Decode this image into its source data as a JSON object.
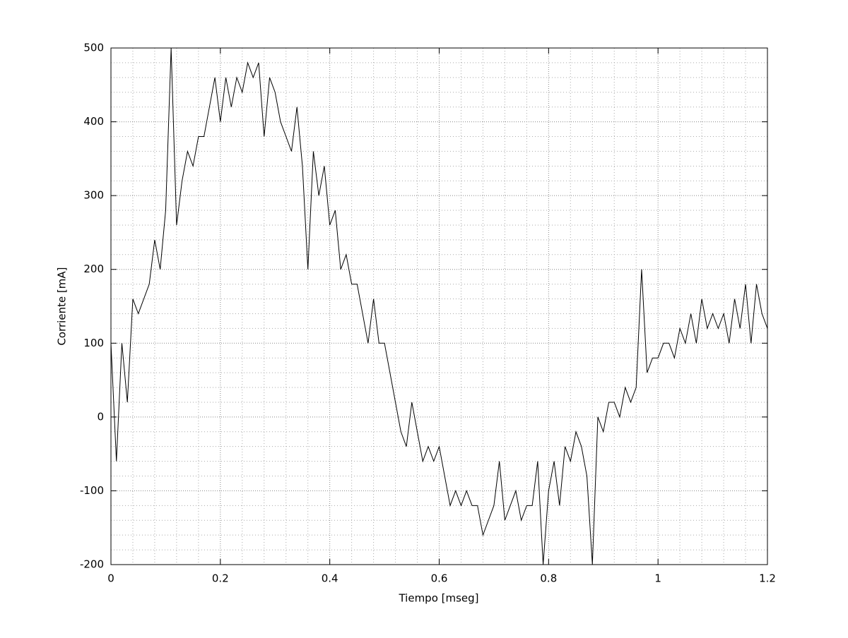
{
  "chart_data": {
    "type": "line",
    "xlabel": "Tiempo [mseg]",
    "ylabel": "Corriente [mA]",
    "x": [
      0,
      0.01,
      0.02,
      0.03,
      0.04,
      0.05,
      0.06,
      0.07,
      0.08,
      0.09,
      0.1,
      0.11,
      0.12,
      0.13,
      0.14,
      0.15,
      0.16,
      0.17,
      0.18,
      0.19,
      0.2,
      0.21,
      0.22,
      0.23,
      0.24,
      0.25,
      0.26,
      0.27,
      0.28,
      0.29,
      0.3,
      0.31,
      0.32,
      0.33,
      0.34,
      0.35,
      0.36,
      0.37,
      0.38,
      0.39,
      0.4,
      0.41,
      0.42,
      0.43,
      0.44,
      0.45,
      0.46,
      0.47,
      0.48,
      0.49,
      0.5,
      0.51,
      0.52,
      0.53,
      0.54,
      0.55,
      0.56,
      0.57,
      0.58,
      0.59,
      0.6,
      0.61,
      0.62,
      0.63,
      0.64,
      0.65,
      0.66,
      0.67,
      0.68,
      0.69,
      0.7,
      0.71,
      0.72,
      0.73,
      0.74,
      0.75,
      0.76,
      0.77,
      0.78,
      0.79,
      0.8,
      0.81,
      0.82,
      0.83,
      0.84,
      0.85,
      0.86,
      0.87,
      0.88,
      0.89,
      0.9,
      0.91,
      0.92,
      0.93,
      0.94,
      0.95,
      0.96,
      0.97,
      0.98,
      0.99,
      1,
      1.01,
      1.02,
      1.03,
      1.04,
      1.05,
      1.06,
      1.07,
      1.08,
      1.09,
      1.1,
      1.11,
      1.12,
      1.13,
      1.14,
      1.15,
      1.16,
      1.17,
      1.18,
      1.19,
      1.2
    ],
    "series": [
      {
        "color": "#000000",
        "values": [
          100,
          -60,
          100,
          20,
          160,
          140,
          160,
          180,
          240,
          200,
          280,
          500,
          260,
          320,
          360,
          340,
          380,
          380,
          420,
          460,
          400,
          460,
          420,
          460,
          440,
          480,
          460,
          480,
          380,
          460,
          440,
          400,
          380,
          360,
          420,
          340,
          200,
          360,
          300,
          340,
          260,
          280,
          200,
          220,
          180,
          180,
          140,
          100,
          160,
          100,
          100,
          60,
          20,
          -20,
          -40,
          20,
          -20,
          -60,
          -40,
          -60,
          -40,
          -80,
          -120,
          -100,
          -120,
          -100,
          -120,
          -120,
          -160,
          -140,
          -120,
          -60,
          -140,
          -120,
          -100,
          -140,
          -120,
          -120,
          -60,
          -200,
          -100,
          -60,
          -120,
          -40,
          -60,
          -20,
          -40,
          -80,
          -200,
          0,
          -20,
          20,
          20,
          0,
          40,
          20,
          40,
          200,
          60,
          80,
          80,
          100,
          100,
          80,
          120,
          100,
          140,
          100,
          160,
          120,
          140,
          120,
          140,
          100,
          160,
          120,
          180,
          100,
          180,
          140,
          120
        ]
      }
    ],
    "xlim": [
      0,
      1.2
    ],
    "ylim": [
      -200,
      500
    ],
    "xticks": [
      0,
      0.2,
      0.4,
      0.6,
      0.8,
      1,
      1.2
    ],
    "yticks": [
      -200,
      -100,
      0,
      100,
      200,
      300,
      400,
      500
    ],
    "grid": true,
    "minor_grid_divisions": 5
  }
}
